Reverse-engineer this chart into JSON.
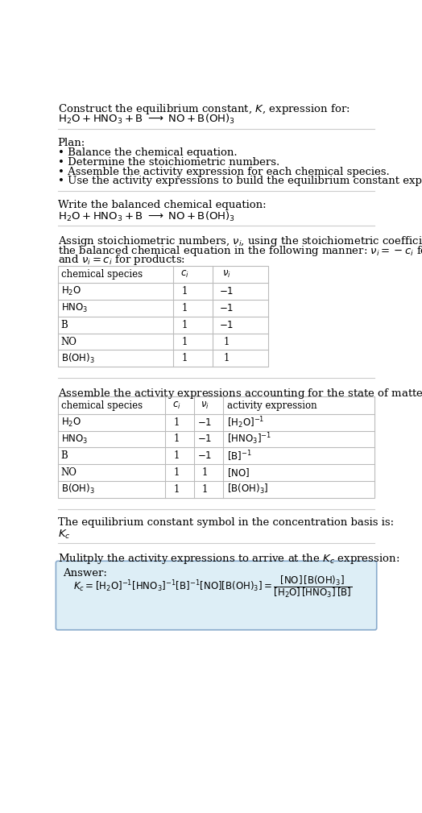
{
  "title_text": "Construct the equilibrium constant, $K$, expression for:",
  "plan_header": "Plan:",
  "plan_bullets": [
    "• Balance the chemical equation.",
    "• Determine the stoichiometric numbers.",
    "• Assemble the activity expression for each chemical species.",
    "• Use the activity expressions to build the equilibrium constant expression."
  ],
  "balanced_header": "Write the balanced chemical equation:",
  "stoich_intro_lines": [
    "Assign stoichiometric numbers, $\\nu_i$, using the stoichiometric coefficients, $c_i$, from",
    "the balanced chemical equation in the following manner: $\\nu_i = -c_i$ for reactants",
    "and $\\nu_i = c_i$ for products:"
  ],
  "table1_headers": [
    "chemical species",
    "$c_i$",
    "$\\nu_i$"
  ],
  "table1_rows": [
    [
      "$\\mathrm{H_2O}$",
      "1",
      "$-1$"
    ],
    [
      "$\\mathrm{HNO_3}$",
      "1",
      "$-1$"
    ],
    [
      "B",
      "1",
      "$-1$"
    ],
    [
      "NO",
      "1",
      "1"
    ],
    [
      "$\\mathrm{B(OH)_3}$",
      "1",
      "1"
    ]
  ],
  "assemble_header": "Assemble the activity expressions accounting for the state of matter and $\\nu_i$:",
  "table2_headers": [
    "chemical species",
    "$c_i$",
    "$\\nu_i$",
    "activity expression"
  ],
  "table2_rows": [
    [
      "$\\mathrm{H_2O}$",
      "1",
      "$-1$",
      "$[\\mathrm{H_2O}]^{-1}$"
    ],
    [
      "$\\mathrm{HNO_3}$",
      "1",
      "$-1$",
      "$[\\mathrm{HNO_3}]^{-1}$"
    ],
    [
      "B",
      "1",
      "$-1$",
      "$[\\mathrm{B}]^{-1}$"
    ],
    [
      "NO",
      "1",
      "1",
      "$[\\mathrm{NO}]$"
    ],
    [
      "$\\mathrm{B(OH)_3}$",
      "1",
      "1",
      "$[\\mathrm{B(OH)_3}]$"
    ]
  ],
  "Kc_symbol_text": "The equilibrium constant symbol in the concentration basis is:",
  "Kc_symbol": "$K_c$",
  "multiply_text": "Mulitply the activity expressions to arrive at the $K_c$ expression:",
  "answer_label": "Answer:",
  "bg_color": "#ffffff",
  "text_color": "#000000",
  "table_line_color": "#bbbbbb",
  "answer_box_color": "#ddeef6",
  "answer_border_color": "#88aacc"
}
